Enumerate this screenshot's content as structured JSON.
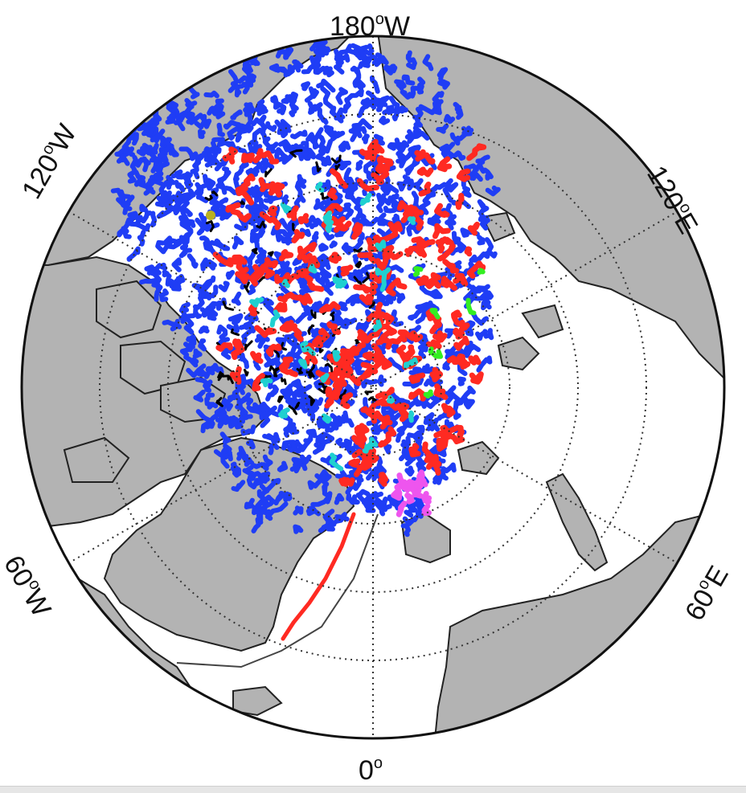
{
  "map": {
    "projection": "north-polar-stereographic",
    "labels": {
      "top": {
        "value": "180",
        "unit": "W"
      },
      "bottom": {
        "value": "0",
        "unit": ""
      },
      "left_upper": {
        "value": "120",
        "unit": "W"
      },
      "left_lower": {
        "value": "60",
        "unit": "W"
      },
      "right_upper": {
        "value": "120",
        "unit": "E"
      },
      "right_lower": {
        "value": "60",
        "unit": "E"
      },
      "degree_symbol": "o"
    },
    "colors": {
      "land": "#b3b3b3",
      "ocean": "#ffffff",
      "blue_tracks": "#1f3df5",
      "red_tracks": "#ff2a22",
      "cyan_tracks": "#1fd0d0",
      "green_tracks": "#33ee22",
      "magenta_tracks": "#ee55ee",
      "black_tracks": "#000000",
      "olive_marker": "#b8b020",
      "graticule": "#333333"
    }
  }
}
